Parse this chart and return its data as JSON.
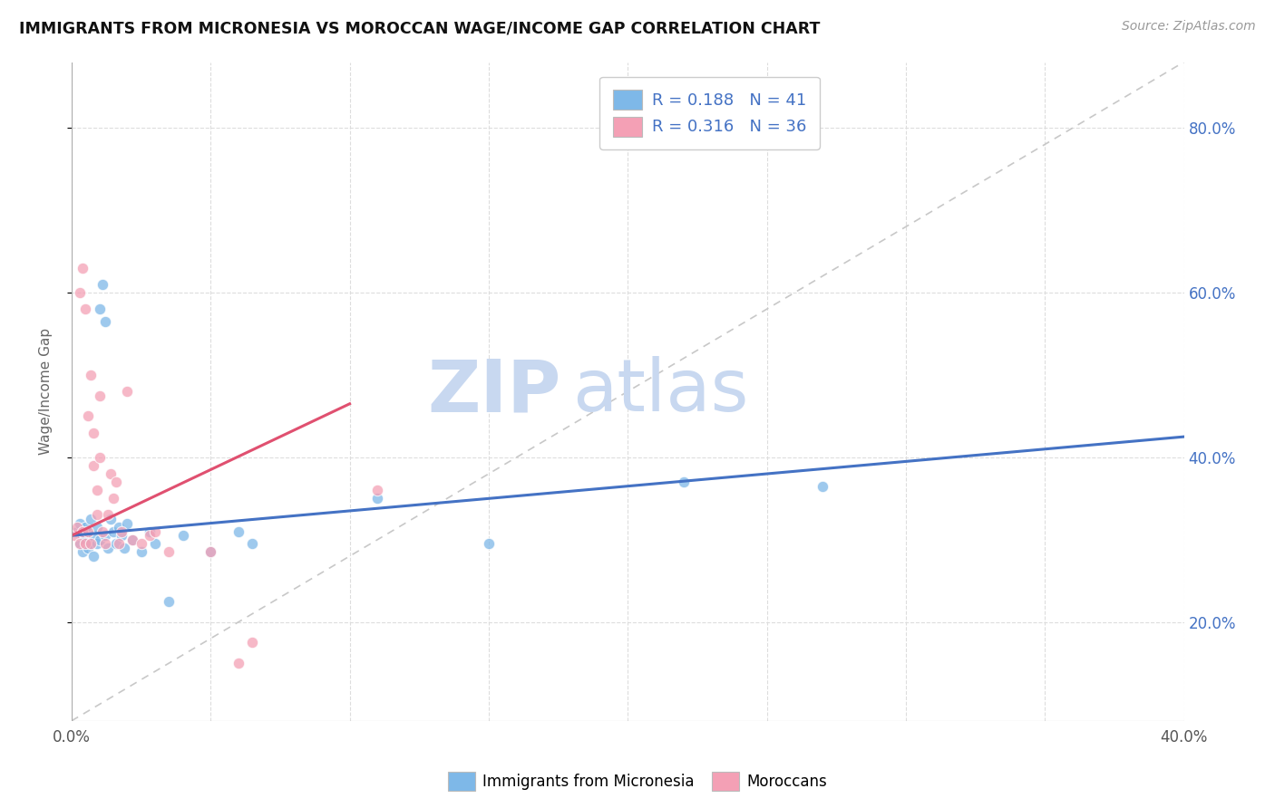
{
  "title": "IMMIGRANTS FROM MICRONESIA VS MOROCCAN WAGE/INCOME GAP CORRELATION CHART",
  "source": "Source: ZipAtlas.com",
  "ylabel": "Wage/Income Gap",
  "xlim": [
    0.0,
    0.4
  ],
  "ylim": [
    0.08,
    0.88
  ],
  "xticks": [
    0.0,
    0.05,
    0.1,
    0.15,
    0.2,
    0.25,
    0.3,
    0.35,
    0.4
  ],
  "xtick_labels_show": [
    "0.0%",
    "",
    "",
    "",
    "",
    "",
    "",
    "",
    "40.0%"
  ],
  "yticks": [
    0.2,
    0.4,
    0.6,
    0.8
  ],
  "ytick_labels": [
    "20.0%",
    "40.0%",
    "60.0%",
    "80.0%"
  ],
  "blue_color": "#7EB8E8",
  "pink_color": "#F4A0B5",
  "trend_blue": "#4472C4",
  "trend_pink": "#E05070",
  "diag_color": "#C8C8C8",
  "r_blue": 0.188,
  "n_blue": 41,
  "r_pink": 0.316,
  "n_pink": 36,
  "watermark_zip": "ZIP",
  "watermark_atlas": "atlas",
  "watermark_color_zip": "#C8D8F0",
  "watermark_color_atlas": "#C8D8F0",
  "blue_scatter": [
    [
      0.002,
      0.31
    ],
    [
      0.003,
      0.295
    ],
    [
      0.003,
      0.32
    ],
    [
      0.004,
      0.285
    ],
    [
      0.004,
      0.305
    ],
    [
      0.005,
      0.3
    ],
    [
      0.005,
      0.315
    ],
    [
      0.006,
      0.29
    ],
    [
      0.006,
      0.31
    ],
    [
      0.007,
      0.295
    ],
    [
      0.007,
      0.325
    ],
    [
      0.008,
      0.305
    ],
    [
      0.008,
      0.28
    ],
    [
      0.009,
      0.295
    ],
    [
      0.009,
      0.315
    ],
    [
      0.01,
      0.3
    ],
    [
      0.01,
      0.58
    ],
    [
      0.011,
      0.61
    ],
    [
      0.012,
      0.565
    ],
    [
      0.012,
      0.305
    ],
    [
      0.013,
      0.29
    ],
    [
      0.014,
      0.325
    ],
    [
      0.015,
      0.31
    ],
    [
      0.016,
      0.295
    ],
    [
      0.017,
      0.315
    ],
    [
      0.018,
      0.305
    ],
    [
      0.019,
      0.29
    ],
    [
      0.02,
      0.32
    ],
    [
      0.022,
      0.3
    ],
    [
      0.025,
      0.285
    ],
    [
      0.028,
      0.31
    ],
    [
      0.03,
      0.295
    ],
    [
      0.035,
      0.225
    ],
    [
      0.04,
      0.305
    ],
    [
      0.05,
      0.285
    ],
    [
      0.06,
      0.31
    ],
    [
      0.065,
      0.295
    ],
    [
      0.11,
      0.35
    ],
    [
      0.15,
      0.295
    ],
    [
      0.22,
      0.37
    ],
    [
      0.27,
      0.365
    ]
  ],
  "pink_scatter": [
    [
      0.001,
      0.305
    ],
    [
      0.002,
      0.315
    ],
    [
      0.003,
      0.295
    ],
    [
      0.003,
      0.6
    ],
    [
      0.004,
      0.63
    ],
    [
      0.004,
      0.31
    ],
    [
      0.005,
      0.295
    ],
    [
      0.005,
      0.58
    ],
    [
      0.006,
      0.31
    ],
    [
      0.006,
      0.45
    ],
    [
      0.007,
      0.295
    ],
    [
      0.007,
      0.5
    ],
    [
      0.008,
      0.43
    ],
    [
      0.008,
      0.39
    ],
    [
      0.009,
      0.36
    ],
    [
      0.009,
      0.33
    ],
    [
      0.01,
      0.4
    ],
    [
      0.01,
      0.475
    ],
    [
      0.011,
      0.31
    ],
    [
      0.012,
      0.295
    ],
    [
      0.013,
      0.33
    ],
    [
      0.014,
      0.38
    ],
    [
      0.015,
      0.35
    ],
    [
      0.016,
      0.37
    ],
    [
      0.017,
      0.295
    ],
    [
      0.018,
      0.31
    ],
    [
      0.02,
      0.48
    ],
    [
      0.022,
      0.3
    ],
    [
      0.025,
      0.295
    ],
    [
      0.028,
      0.305
    ],
    [
      0.03,
      0.31
    ],
    [
      0.035,
      0.285
    ],
    [
      0.05,
      0.285
    ],
    [
      0.06,
      0.15
    ],
    [
      0.065,
      0.175
    ],
    [
      0.11,
      0.36
    ]
  ],
  "background_color": "#FFFFFF",
  "grid_color": "#DDDDDD",
  "legend_color": "#4472C4"
}
